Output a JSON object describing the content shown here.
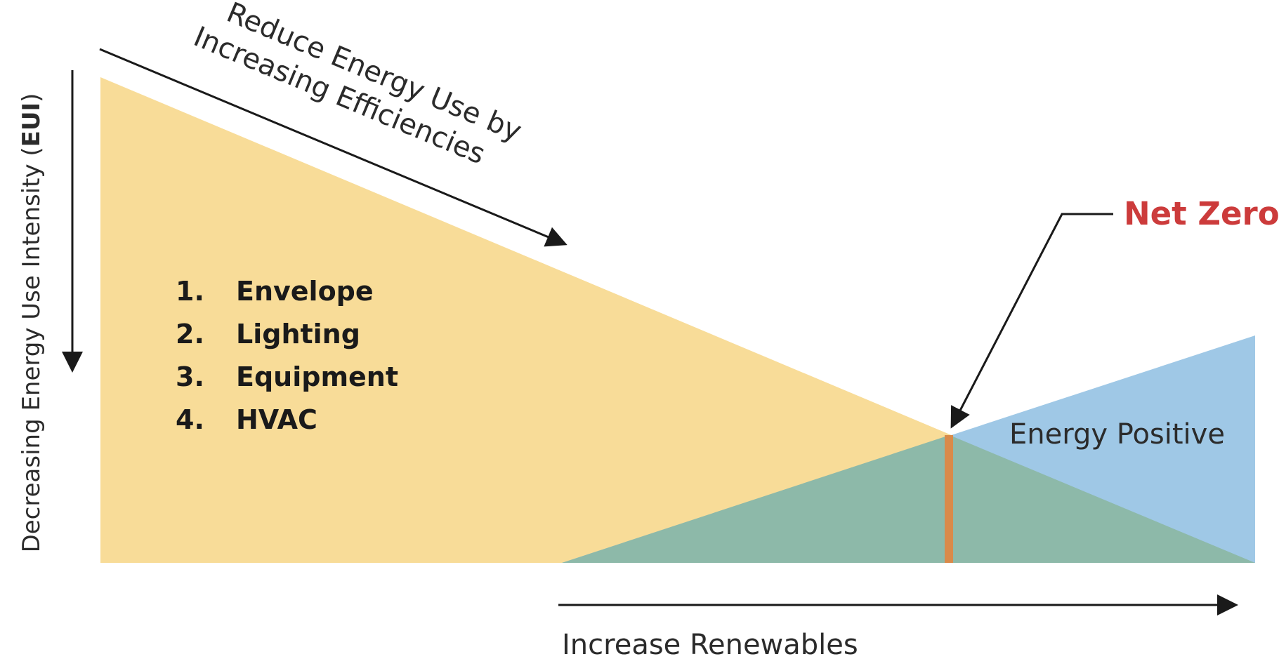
{
  "y_axis_label": "Decreasing Energy Use Intensity (",
  "y_axis_label_bold": "EUI",
  "y_axis_label_end": ")",
  "efficiency_label": {
    "line1": "Reduce Energy Use by",
    "line2": "Increasing Efficiencies"
  },
  "efficiency_steps": [
    {
      "number": "1.",
      "label": "Envelope"
    },
    {
      "number": "2.",
      "label": "Lighting"
    },
    {
      "number": "3.",
      "label": "Equipment"
    },
    {
      "number": "4.",
      "label": "HVAC"
    }
  ],
  "net_zero_label": "Net Zero",
  "energy_positive_label": "Energy Positive",
  "x_axis_label": "Increase Renewables",
  "colors": {
    "energy_use_area": "#f8dc98",
    "renewables_area": "#9fc8e6",
    "overlap_area": "#8db9a9",
    "net_zero_marker": "#d98a4a",
    "net_zero_text": "#cc3b3b",
    "arrow": "#1a1a1a"
  }
}
